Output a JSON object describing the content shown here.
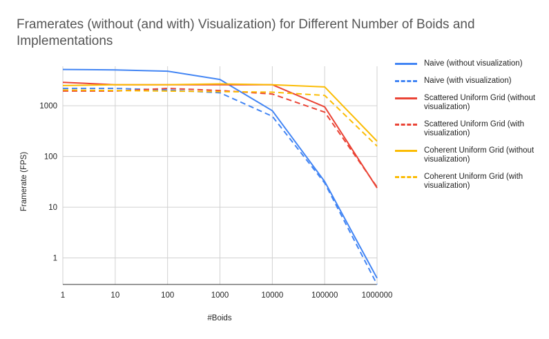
{
  "chart_data": {
    "type": "line",
    "title": "Framerates (without (and with) Visualization) for Different Number of Boids and Implementations",
    "xlabel": "#Boids",
    "ylabel": "Framerate (FPS)",
    "x": [
      1,
      10,
      100,
      1000,
      10000,
      100000,
      1000000
    ],
    "x_scale": "log",
    "y_scale": "log",
    "ylim": [
      0.3,
      6000
    ],
    "x_ticks": [
      "1",
      "10",
      "100",
      "1000",
      "10000",
      "100000",
      "1000000"
    ],
    "y_ticks": [
      {
        "value": 1,
        "label": "1"
      },
      {
        "value": 10,
        "label": "10"
      },
      {
        "value": 100,
        "label": "100"
      },
      {
        "value": 1000,
        "label": "1000"
      }
    ],
    "grid": true,
    "legend_position": "right",
    "series": [
      {
        "name": "Naive (without visualization)",
        "color": "#4285F4",
        "dashed": false,
        "values": [
          5200,
          5100,
          4800,
          3300,
          800,
          32,
          0.4
        ]
      },
      {
        "name": "Naive (with visualization)",
        "color": "#4285F4",
        "dashed": true,
        "values": [
          2200,
          2200,
          2050,
          1800,
          620,
          30,
          0.3
        ]
      },
      {
        "name": "Scattered Uniform Grid (without visualization)",
        "color": "#EA4335",
        "dashed": false,
        "values": [
          2900,
          2600,
          2600,
          2600,
          2600,
          950,
          24
        ]
      },
      {
        "name": "Scattered Uniform Grid (with visualization)",
        "color": "#EA4335",
        "dashed": true,
        "values": [
          1950,
          1950,
          2200,
          2000,
          1700,
          750,
          25
        ]
      },
      {
        "name": "Coherent Uniform Grid (without visualization)",
        "color": "#FBBC04",
        "dashed": false,
        "values": [
          2500,
          2600,
          2600,
          2700,
          2600,
          2350,
          200
        ]
      },
      {
        "name": "Coherent Uniform Grid (with visualization)",
        "color": "#FBBC04",
        "dashed": true,
        "values": [
          2050,
          2000,
          1950,
          1900,
          1850,
          1600,
          160
        ]
      }
    ]
  }
}
